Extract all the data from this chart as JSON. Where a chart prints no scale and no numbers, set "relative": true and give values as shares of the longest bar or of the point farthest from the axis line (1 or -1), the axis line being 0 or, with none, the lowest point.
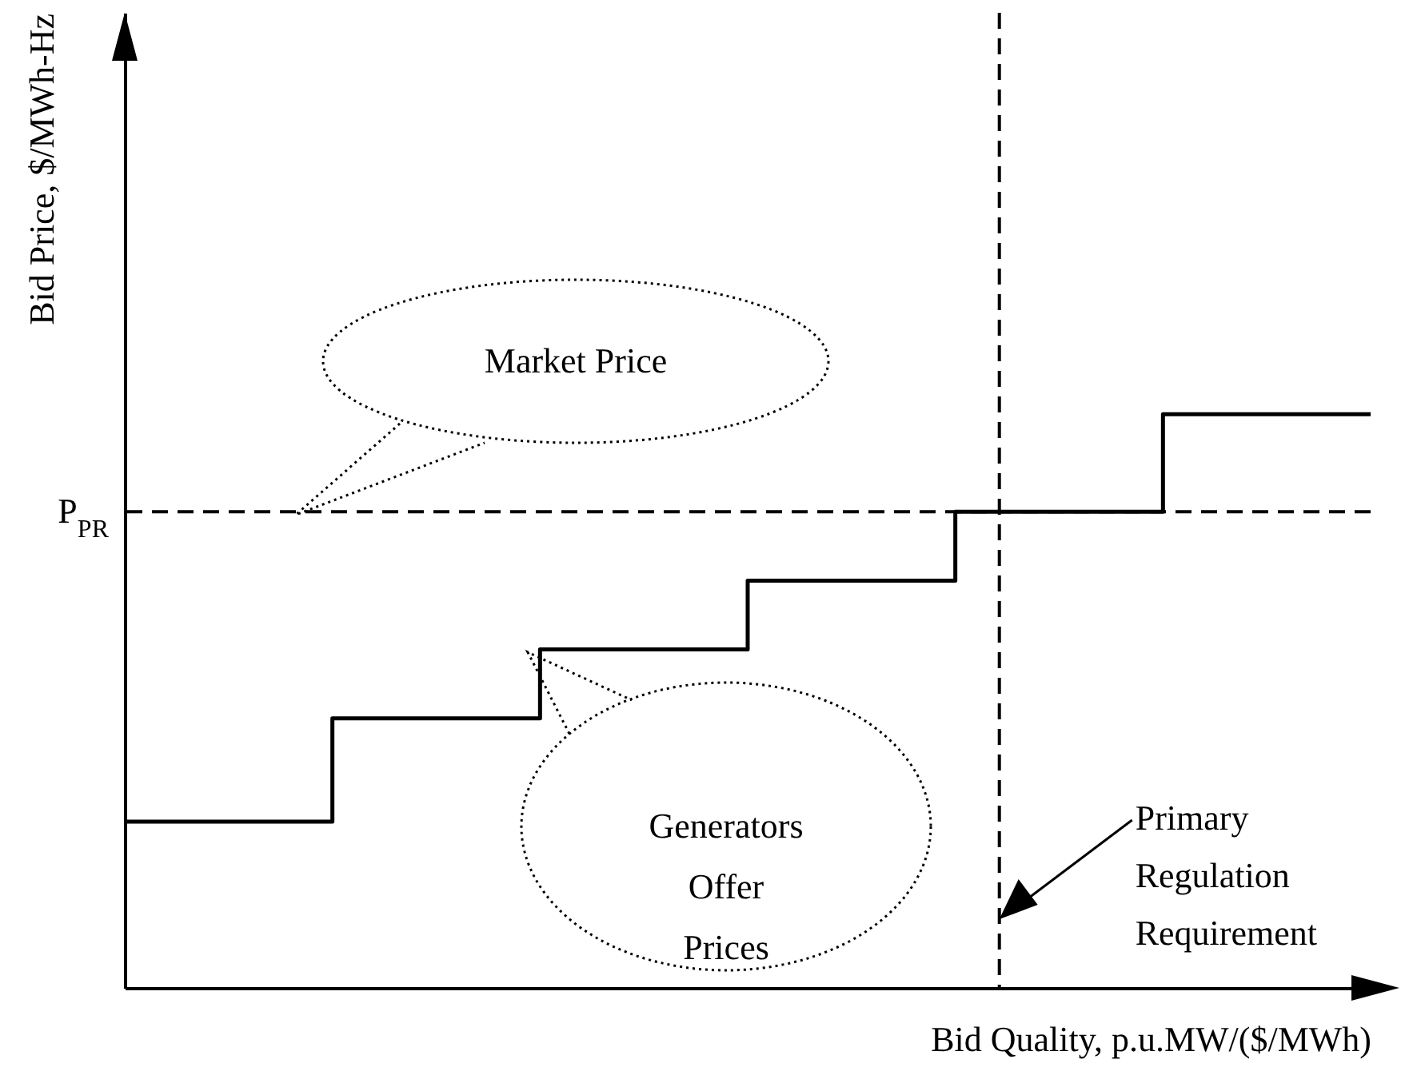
{
  "chart_data": {
    "type": "step",
    "xlabel": "Bid Quality, p.u.MW/($/MWh)",
    "ylabel": "Bid Price, $/MWh-Hz",
    "relative": true,
    "categories": [
      null,
      null,
      null,
      null,
      null,
      null,
      null
    ],
    "series": [
      {
        "color": "#000000",
        "values": [
          0.29,
          0.47,
          0.59,
          0.71,
          0.83,
          1,
          1
        ]
      }
    ],
    "ref_lines": [
      {
        "axis": "y",
        "value": 0.83,
        "label": "P$_{PR}$",
        "line_style": "dashed",
        "color": "#000000"
      },
      {
        "axis": "x",
        "label": "Primary Regulation Requirement",
        "line_style": "dashed",
        "color": "#000000"
      }
    ],
    "annotations": [
      "Market Price",
      "Generators Offer Prices"
    ]
  }
}
